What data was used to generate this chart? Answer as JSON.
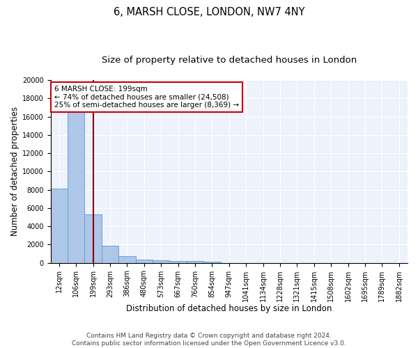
{
  "title1": "6, MARSH CLOSE, LONDON, NW7 4NY",
  "title2": "Size of property relative to detached houses in London",
  "xlabel": "Distribution of detached houses by size in London",
  "ylabel": "Number of detached properties",
  "categories": [
    "12sqm",
    "106sqm",
    "199sqm",
    "293sqm",
    "386sqm",
    "480sqm",
    "573sqm",
    "667sqm",
    "760sqm",
    "854sqm",
    "947sqm",
    "1041sqm",
    "1134sqm",
    "1228sqm",
    "1321sqm",
    "1415sqm",
    "1508sqm",
    "1602sqm",
    "1695sqm",
    "1789sqm",
    "1882sqm"
  ],
  "values": [
    8100,
    16500,
    5300,
    1850,
    700,
    370,
    280,
    200,
    175,
    150,
    0,
    0,
    0,
    0,
    0,
    0,
    0,
    0,
    0,
    0,
    0
  ],
  "bar_color": "#aec6e8",
  "bar_edge_color": "#5b9bd5",
  "vline_x": 2,
  "vline_color": "#8b0000",
  "annotation_text": "6 MARSH CLOSE: 199sqm\n← 74% of detached houses are smaller (24,508)\n25% of semi-detached houses are larger (8,369) →",
  "annotation_box_color": "#ffffff",
  "annotation_box_edge": "#cc0000",
  "ylim": [
    0,
    20000
  ],
  "yticks": [
    0,
    2000,
    4000,
    6000,
    8000,
    10000,
    12000,
    14000,
    16000,
    18000,
    20000
  ],
  "background_color": "#eef2fb",
  "footer": "Contains HM Land Registry data © Crown copyright and database right 2024.\nContains public sector information licensed under the Open Government Licence v3.0.",
  "title1_fontsize": 10.5,
  "title2_fontsize": 9.5,
  "xlabel_fontsize": 8.5,
  "ylabel_fontsize": 8.5,
  "tick_fontsize": 7,
  "footer_fontsize": 6.5
}
